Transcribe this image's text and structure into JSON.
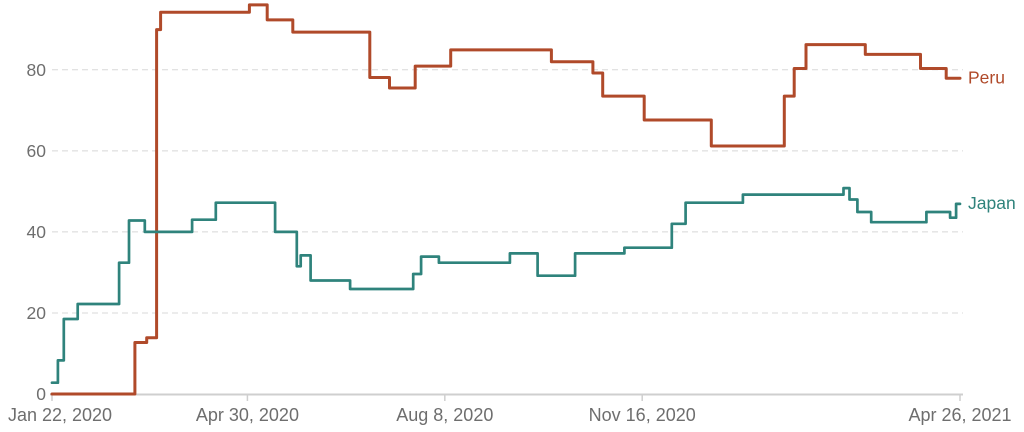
{
  "chart_data": {
    "type": "line",
    "subtype": "step-after",
    "description": "Two-country step line chart (stringency-index style), values 0-100",
    "x_range": [
      "2020-01-22",
      "2021-04-26"
    ],
    "y_range": [
      0,
      100
    ],
    "grid": "horizontal dashed gridlines at 20,40,60,80; solid baseline at 0",
    "legend_position": "labels at right end of each line",
    "y_ticks": [
      0,
      20,
      40,
      60,
      80
    ],
    "x_ticks": [
      {
        "label": "Jan 22, 2020",
        "date": "2020-01-22"
      },
      {
        "label": "Apr 30, 2020",
        "date": "2020-04-30"
      },
      {
        "label": "Aug 8, 2020",
        "date": "2020-08-08"
      },
      {
        "label": "Nov 16, 2020",
        "date": "2020-11-16"
      },
      {
        "label": "Apr 26, 2021",
        "date": "2021-04-26"
      }
    ],
    "series": [
      {
        "name": "Peru",
        "color": "#b04a2a",
        "points": [
          [
            "2020-01-22",
            0
          ],
          [
            "2020-03-04",
            12.7
          ],
          [
            "2020-03-10",
            13.9
          ],
          [
            "2020-03-15",
            89.9
          ],
          [
            "2020-03-17",
            94.2
          ],
          [
            "2020-05-01",
            96.0
          ],
          [
            "2020-05-10",
            92.3
          ],
          [
            "2020-05-23",
            89.3
          ],
          [
            "2020-07-01",
            78.1
          ],
          [
            "2020-07-11",
            75.5
          ],
          [
            "2020-07-24",
            80.9
          ],
          [
            "2020-08-11",
            84.9
          ],
          [
            "2020-10-01",
            82.0
          ],
          [
            "2020-10-22",
            79.2
          ],
          [
            "2020-10-27",
            73.5
          ],
          [
            "2020-11-17",
            67.6
          ],
          [
            "2020-12-21",
            61.2
          ],
          [
            "2021-01-27",
            73.5
          ],
          [
            "2021-02-01",
            80.3
          ],
          [
            "2021-02-07",
            86.2
          ],
          [
            "2021-03-09",
            83.8
          ],
          [
            "2021-04-06",
            80.3
          ],
          [
            "2021-04-19",
            77.9
          ]
        ]
      },
      {
        "name": "Japan",
        "color": "#2f837c",
        "points": [
          [
            "2020-01-22",
            2.8
          ],
          [
            "2020-01-25",
            8.3
          ],
          [
            "2020-01-28",
            18.5
          ],
          [
            "2020-02-04",
            22.2
          ],
          [
            "2020-02-25",
            32.4
          ],
          [
            "2020-03-01",
            42.8
          ],
          [
            "2020-03-09",
            40.0
          ],
          [
            "2020-04-02",
            43.0
          ],
          [
            "2020-04-14",
            47.2
          ],
          [
            "2020-05-14",
            40.0
          ],
          [
            "2020-05-25",
            31.5
          ],
          [
            "2020-05-27",
            34.2
          ],
          [
            "2020-06-01",
            28.0
          ],
          [
            "2020-06-21",
            25.9
          ],
          [
            "2020-07-23",
            29.6
          ],
          [
            "2020-07-27",
            33.9
          ],
          [
            "2020-08-05",
            32.4
          ],
          [
            "2020-09-10",
            34.7
          ],
          [
            "2020-09-24",
            29.2
          ],
          [
            "2020-10-13",
            34.7
          ],
          [
            "2020-11-07",
            36.1
          ],
          [
            "2020-12-01",
            42.0
          ],
          [
            "2020-12-08",
            47.2
          ],
          [
            "2021-01-06",
            49.2
          ],
          [
            "2021-02-26",
            50.8
          ],
          [
            "2021-03-01",
            48.0
          ],
          [
            "2021-03-05",
            44.9
          ],
          [
            "2021-03-12",
            42.4
          ],
          [
            "2021-04-09",
            44.9
          ],
          [
            "2021-04-21",
            43.5
          ],
          [
            "2021-04-24",
            46.9
          ]
        ]
      }
    ]
  },
  "colors": {
    "axis_text": "#6e6e6e",
    "gridline": "#d8d8d8",
    "axis_line": "#cfcfcf",
    "background": "#ffffff"
  }
}
